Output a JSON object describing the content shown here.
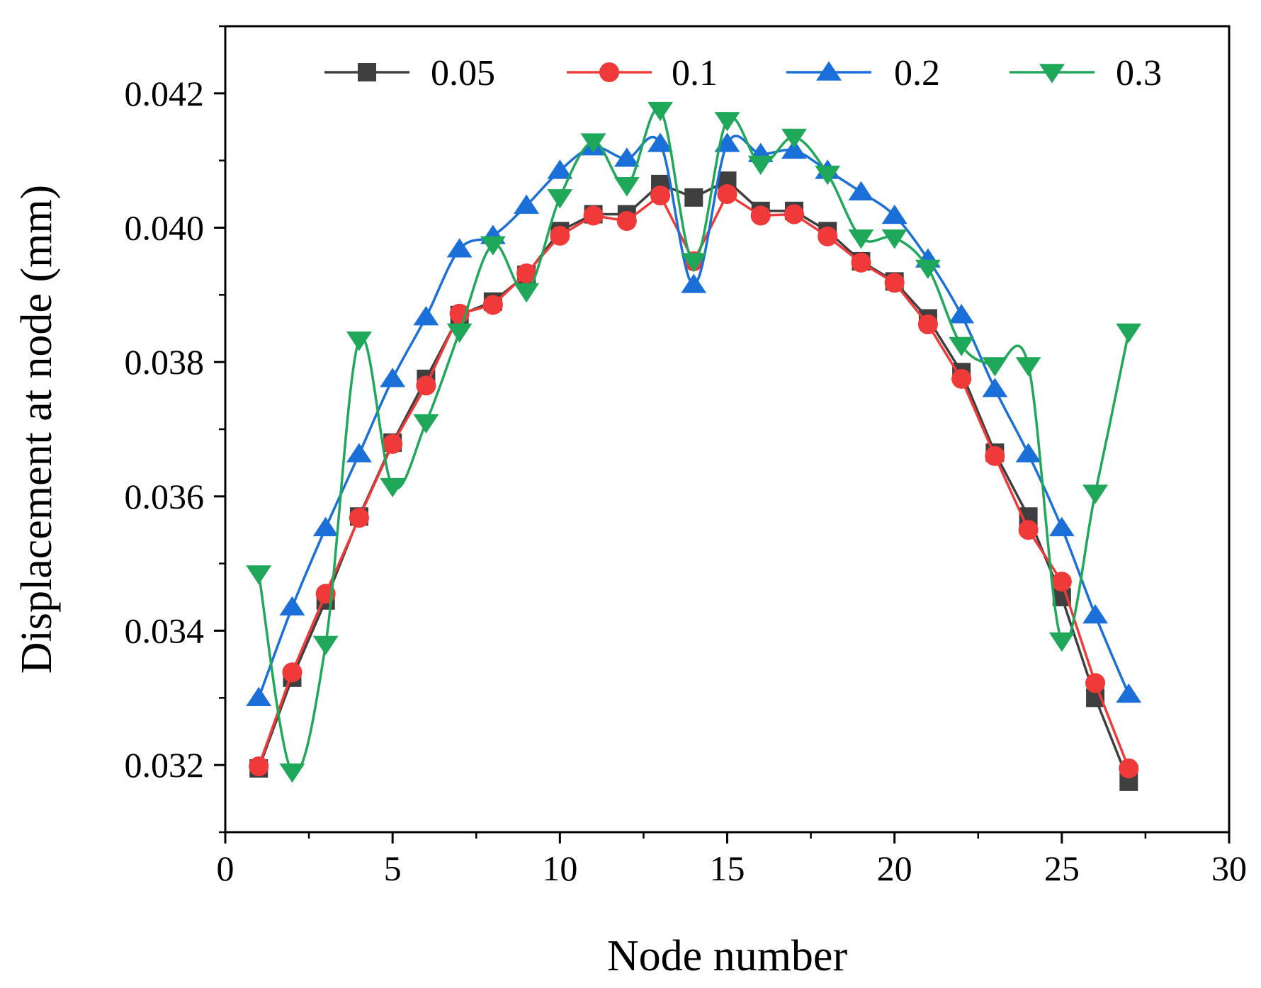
{
  "chart_data": {
    "type": "line",
    "title": "",
    "xlabel": "Node number",
    "ylabel": "Displacement at node (mm)",
    "xlim": [
      0,
      30
    ],
    "ylim": [
      0.031,
      0.043
    ],
    "xticks": [
      0,
      5,
      10,
      15,
      20,
      25,
      30
    ],
    "xtick_labels": [
      "0",
      "5",
      "10",
      "15",
      "20",
      "25",
      "30"
    ],
    "yticks": [
      0.032,
      0.034,
      0.036,
      0.038,
      0.04,
      0.042
    ],
    "ytick_labels": [
      "0.032",
      "0.034",
      "0.036",
      "0.038",
      "0.040",
      "0.042"
    ],
    "grid": false,
    "legend_position": "top",
    "x": [
      1,
      2,
      3,
      4,
      5,
      6,
      7,
      8,
      9,
      10,
      11,
      12,
      13,
      14,
      15,
      16,
      17,
      18,
      19,
      20,
      21,
      22,
      23,
      24,
      25,
      26,
      27
    ],
    "series": [
      {
        "name": "0.05",
        "color": "#3f3f3f",
        "marker": "square",
        "smooth": false,
        "values": [
          0.03195,
          0.0333,
          0.03445,
          0.0357,
          0.0368,
          0.03775,
          0.0387,
          0.0389,
          0.0393,
          0.03995,
          0.0402,
          0.0402,
          0.04065,
          0.04045,
          0.0407,
          0.04025,
          0.04025,
          0.03995,
          0.0395,
          0.0392,
          0.03865,
          0.03785,
          0.03665,
          0.0357,
          0.0345,
          0.033,
          0.03175
        ]
      },
      {
        "name": "0.1",
        "color": "#f03a3a",
        "marker": "circle",
        "smooth": false,
        "values": [
          0.03198,
          0.03338,
          0.03455,
          0.03568,
          0.03678,
          0.03765,
          0.03872,
          0.03885,
          0.03932,
          0.03988,
          0.04018,
          0.0401,
          0.04048,
          0.0395,
          0.0405,
          0.04018,
          0.0402,
          0.03987,
          0.03948,
          0.03918,
          0.03856,
          0.03775,
          0.0366,
          0.0355,
          0.03473,
          0.03322,
          0.03195
        ]
      },
      {
        "name": "0.2",
        "color": "#1b6fd8",
        "marker": "triangle-up",
        "smooth": true,
        "values": [
          0.033,
          0.03435,
          0.03553,
          0.03663,
          0.03775,
          0.03867,
          0.03968,
          0.03988,
          0.04033,
          0.04085,
          0.0412,
          0.04103,
          0.04125,
          0.03915,
          0.04125,
          0.0411,
          0.04115,
          0.04085,
          0.04053,
          0.04018,
          0.03953,
          0.0387,
          0.0376,
          0.03663,
          0.03553,
          0.03423,
          0.03305
        ]
      },
      {
        "name": "0.3",
        "color": "#1fa85a",
        "marker": "triangle-down",
        "smooth": true,
        "values": [
          0.03485,
          0.0319,
          0.0338,
          0.03833,
          0.03615,
          0.0371,
          0.03845,
          0.03975,
          0.03905,
          0.04045,
          0.04128,
          0.04063,
          0.04175,
          0.0395,
          0.0416,
          0.04095,
          0.04135,
          0.0408,
          0.03985,
          0.03985,
          0.0394,
          0.03825,
          0.03795,
          0.03795,
          0.03385,
          0.03605,
          0.03845
        ]
      }
    ]
  }
}
